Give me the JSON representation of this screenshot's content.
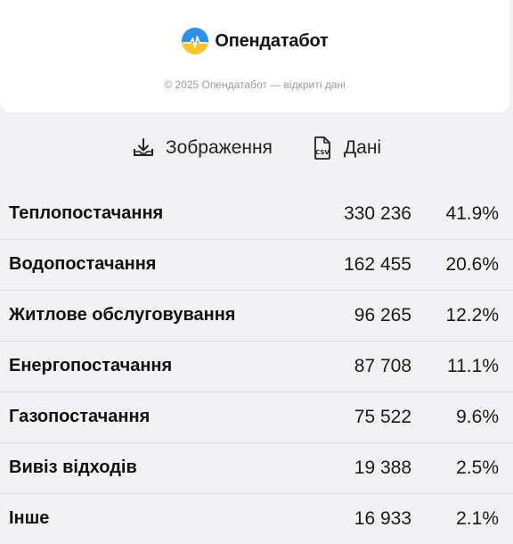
{
  "brand": {
    "name": "Опендатабот",
    "logo_icon": "opendatabot-logo-icon",
    "logo_colors": {
      "top": "#2f8ee8",
      "bottom": "#f8c62b"
    }
  },
  "footer": {
    "copyright": "© 2025 Опендатабот — відкриті дані"
  },
  "actions": {
    "image": {
      "label": "Зображення",
      "icon": "download-tray-icon"
    },
    "data": {
      "label": "Дані",
      "icon": "csv-file-icon"
    }
  },
  "table": {
    "rows": [
      {
        "name": "Теплопостачання",
        "value": "330 236",
        "pct": "41.9%"
      },
      {
        "name": "Водопостачання",
        "value": "162 455",
        "pct": "20.6%"
      },
      {
        "name": "Житлове обслуговування",
        "value": "96 265",
        "pct": "12.2%"
      },
      {
        "name": "Енергопостачання",
        "value": "87 708",
        "pct": "11.1%"
      },
      {
        "name": "Газопостачання",
        "value": "75 522",
        "pct": "9.6%"
      },
      {
        "name": "Вивіз відходів",
        "value": "19 388",
        "pct": "2.5%"
      },
      {
        "name": "Інше",
        "value": "16 933",
        "pct": "2.1%"
      }
    ]
  }
}
